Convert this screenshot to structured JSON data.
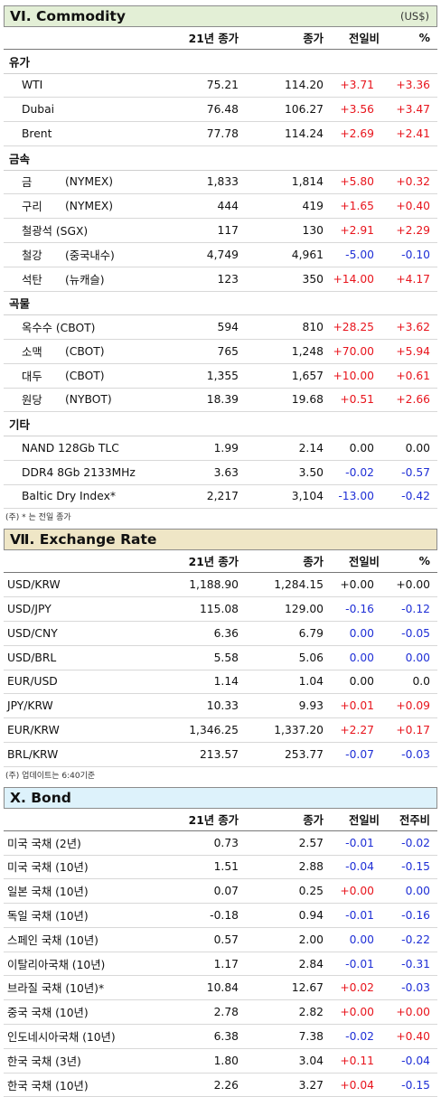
{
  "commodity": {
    "title": "VI. Commodity",
    "unit": "(US$)",
    "headers": [
      "21년 종가",
      "종가",
      "전일비",
      "%"
    ],
    "groups": [
      {
        "name": "유가",
        "rows": [
          {
            "name": "WTI",
            "sub": "",
            "v1": "75.21",
            "v2": "114.20",
            "chg": "+3.71",
            "pct": "+3.36"
          },
          {
            "name": "Dubai",
            "sub": "",
            "v1": "76.48",
            "v2": "106.27",
            "chg": "+3.56",
            "pct": "+3.47"
          },
          {
            "name": "Brent",
            "sub": "",
            "v1": "77.78",
            "v2": "114.24",
            "chg": "+2.69",
            "pct": "+2.41"
          }
        ]
      },
      {
        "name": "금속",
        "rows": [
          {
            "name": "금",
            "sub": "(NYMEX)",
            "v1": "1,833",
            "v2": "1,814",
            "chg": "+5.80",
            "pct": "+0.32"
          },
          {
            "name": "구리",
            "sub": "(NYMEX)",
            "v1": "444",
            "v2": "419",
            "chg": "+1.65",
            "pct": "+0.40"
          },
          {
            "name": "철광석 (SGX)",
            "sub": "",
            "v1": "117",
            "v2": "130",
            "chg": "+2.91",
            "pct": "+2.29"
          },
          {
            "name": "철강",
            "sub": "(중국내수)",
            "v1": "4,749",
            "v2": "4,961",
            "chg": "-5.00",
            "pct": "-0.10"
          },
          {
            "name": "석탄",
            "sub": "(뉴캐슬)",
            "v1": "123",
            "v2": "350",
            "chg": "+14.00",
            "pct": "+4.17"
          }
        ]
      },
      {
        "name": "곡물",
        "rows": [
          {
            "name": "옥수수 (CBOT)",
            "sub": "",
            "v1": "594",
            "v2": "810",
            "chg": "+28.25",
            "pct": "+3.62"
          },
          {
            "name": "소맥",
            "sub": "(CBOT)",
            "v1": "765",
            "v2": "1,248",
            "chg": "+70.00",
            "pct": "+5.94"
          },
          {
            "name": "대두",
            "sub": "(CBOT)",
            "v1": "1,355",
            "v2": "1,657",
            "chg": "+10.00",
            "pct": "+0.61"
          },
          {
            "name": "원당",
            "sub": "(NYBOT)",
            "v1": "18.39",
            "v2": "19.68",
            "chg": "+0.51",
            "pct": "+2.66"
          }
        ]
      },
      {
        "name": "기타",
        "rows": [
          {
            "name": "NAND 128Gb TLC",
            "sub": "",
            "v1": "1.99",
            "v2": "2.14",
            "chg": "0.00",
            "pct": "0.00"
          },
          {
            "name": "DDR4 8Gb 2133MHz",
            "sub": "",
            "v1": "3.63",
            "v2": "3.50",
            "chg": "-0.02",
            "pct": "-0.57"
          },
          {
            "name": "Baltic Dry Index*",
            "sub": "",
            "v1": "2,217",
            "v2": "3,104",
            "chg": "-13.00",
            "pct": "-0.42"
          }
        ]
      }
    ],
    "note": "(주) * 는 전일 종가"
  },
  "exchange": {
    "title": "Ⅶ. Exchange Rate",
    "headers": [
      "21년 종가",
      "종가",
      "전일비",
      "%"
    ],
    "rows": [
      {
        "name": "USD/KRW",
        "v1": "1,188.90",
        "v2": "1,284.15",
        "chg": "+0.00",
        "pct": "+0.00",
        "cc": "nt",
        "pc": "nt"
      },
      {
        "name": "USD/JPY",
        "v1": "115.08",
        "v2": "129.00",
        "chg": "-0.16",
        "pct": "-0.12",
        "cc": "dn",
        "pc": "dn"
      },
      {
        "name": "USD/CNY",
        "v1": "6.36",
        "v2": "6.79",
        "chg": "0.00",
        "pct": "-0.05",
        "cc": "dn",
        "pc": "dn"
      },
      {
        "name": "USD/BRL",
        "v1": "5.58",
        "v2": "5.06",
        "chg": "0.00",
        "pct": "0.00",
        "cc": "dn",
        "pc": "dn"
      },
      {
        "name": "EUR/USD",
        "v1": "1.14",
        "v2": "1.04",
        "chg": "0.00",
        "pct": "0.0",
        "cc": "nt",
        "pc": "nt"
      },
      {
        "name": "JPY/KRW",
        "v1": "10.33",
        "v2": "9.93",
        "chg": "+0.01",
        "pct": "+0.09",
        "cc": "up",
        "pc": "up"
      },
      {
        "name": "EUR/KRW",
        "v1": "1,346.25",
        "v2": "1,337.20",
        "chg": "+2.27",
        "pct": "+0.17",
        "cc": "up",
        "pc": "up"
      },
      {
        "name": "BRL/KRW",
        "v1": "213.57",
        "v2": "253.77",
        "chg": "-0.07",
        "pct": "-0.03",
        "cc": "dn",
        "pc": "dn"
      }
    ],
    "note": "(주) 업데이트는 6:40기준"
  },
  "bond": {
    "title": "X. Bond",
    "headers": [
      "21년 종가",
      "종가",
      "전일비",
      "전주비"
    ],
    "rows": [
      {
        "name": "미국 국채 (2년)",
        "v1": "0.73",
        "v2": "2.57",
        "chg": "-0.01",
        "pct": "-0.02",
        "cc": "dn",
        "pc": "dn"
      },
      {
        "name": "미국 국채 (10년)",
        "v1": "1.51",
        "v2": "2.88",
        "chg": "-0.04",
        "pct": "-0.15",
        "cc": "dn",
        "pc": "dn"
      },
      {
        "name": "일본 국채 (10년)",
        "v1": "0.07",
        "v2": "0.25",
        "chg": "+0.00",
        "pct": "0.00",
        "cc": "up",
        "pc": "dn"
      },
      {
        "name": "독일 국채 (10년)",
        "v1": "-0.18",
        "v2": "0.94",
        "chg": "-0.01",
        "pct": "-0.16",
        "cc": "dn",
        "pc": "dn"
      },
      {
        "name": "스페인 국채 (10년)",
        "v1": "0.57",
        "v2": "2.00",
        "chg": "0.00",
        "pct": "-0.22",
        "cc": "dn",
        "pc": "dn"
      },
      {
        "name": "이탈리아국채 (10년)",
        "v1": "1.17",
        "v2": "2.84",
        "chg": "-0.01",
        "pct": "-0.31",
        "cc": "dn",
        "pc": "dn"
      },
      {
        "name": "브라질 국채 (10년)*",
        "v1": "10.84",
        "v2": "12.67",
        "chg": "+0.02",
        "pct": "-0.03",
        "cc": "up",
        "pc": "dn"
      },
      {
        "name": "중국 국채 (10년)",
        "v1": "2.78",
        "v2": "2.82",
        "chg": "+0.00",
        "pct": "+0.00",
        "cc": "up",
        "pc": "up"
      },
      {
        "name": "인도네시아국채 (10년)",
        "v1": "6.38",
        "v2": "7.38",
        "chg": "-0.02",
        "pct": "+0.40",
        "cc": "dn",
        "pc": "up"
      },
      {
        "name": "한국 국채 (3년)",
        "v1": "1.80",
        "v2": "3.04",
        "chg": "+0.11",
        "pct": "-0.04",
        "cc": "up",
        "pc": "dn"
      },
      {
        "name": "한국 국채 (10년)",
        "v1": "2.26",
        "v2": "3.27",
        "chg": "+0.04",
        "pct": "-0.15",
        "cc": "up",
        "pc": "dn"
      }
    ]
  },
  "colors": {
    "up": "#e8141c",
    "down": "#1f2fd6",
    "commodity_header": "#e3efd6",
    "exchange_header": "#efe6c6",
    "bond_header": "#ddf2fb"
  }
}
